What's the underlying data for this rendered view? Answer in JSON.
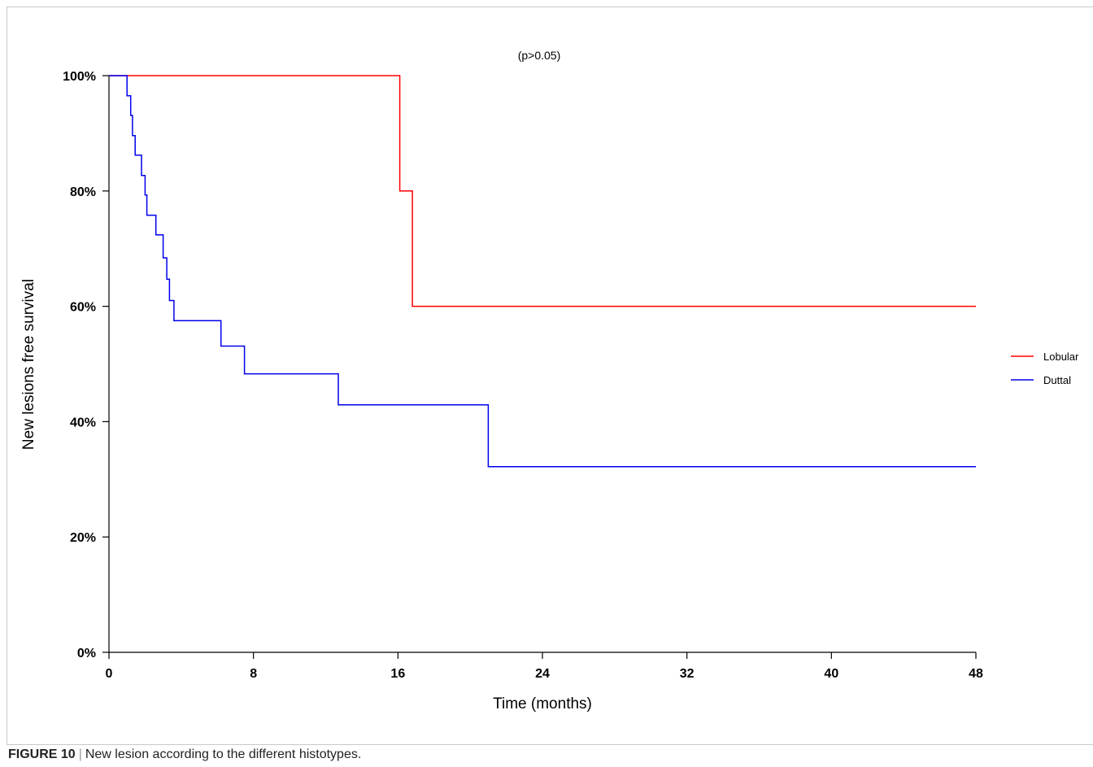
{
  "caption": {
    "label": "FIGURE 10",
    "separator": "|",
    "text": "New lesion according to the different histotypes."
  },
  "chart_data": {
    "type": "line",
    "subtype": "kaplan-meier-step",
    "annotation": "(p>0.05)",
    "xlabel": "Time (months)",
    "ylabel": "New lesions free survival",
    "xlim": [
      0,
      48
    ],
    "ylim": [
      0,
      100
    ],
    "x_ticks": [
      0,
      8,
      16,
      24,
      32,
      40,
      48
    ],
    "x_tick_labels": [
      "0",
      "8",
      "16",
      "24",
      "32",
      "40",
      "48"
    ],
    "y_ticks": [
      0,
      20,
      40,
      60,
      80,
      100
    ],
    "y_tick_labels": [
      "0%",
      "20%",
      "40%",
      "60%",
      "80%",
      "100%"
    ],
    "grid": false,
    "legend_position": "right",
    "series": [
      {
        "name": "Lobular",
        "color": "#ff0000",
        "points": [
          [
            0,
            100
          ],
          [
            16.1,
            100
          ],
          [
            16.1,
            80
          ],
          [
            16.8,
            80
          ],
          [
            16.8,
            60
          ],
          [
            48,
            60
          ]
        ]
      },
      {
        "name": "Duttal",
        "color": "#0000ee",
        "points": [
          [
            0,
            100
          ],
          [
            1.0,
            100
          ],
          [
            1.0,
            96.5
          ],
          [
            1.2,
            96.5
          ],
          [
            1.2,
            93.1
          ],
          [
            1.3,
            93.1
          ],
          [
            1.3,
            89.6
          ],
          [
            1.45,
            89.6
          ],
          [
            1.45,
            86.2
          ],
          [
            1.8,
            86.2
          ],
          [
            1.8,
            82.7
          ],
          [
            2.0,
            82.7
          ],
          [
            2.0,
            79.3
          ],
          [
            2.1,
            79.3
          ],
          [
            2.1,
            75.8
          ],
          [
            2.6,
            75.8
          ],
          [
            2.6,
            72.4
          ],
          [
            3.0,
            72.4
          ],
          [
            3.0,
            68.4
          ],
          [
            3.2,
            68.4
          ],
          [
            3.2,
            64.7
          ],
          [
            3.35,
            64.7
          ],
          [
            3.35,
            61.0
          ],
          [
            3.6,
            61.0
          ],
          [
            3.6,
            57.5
          ],
          [
            6.2,
            57.5
          ],
          [
            6.2,
            53.1
          ],
          [
            7.5,
            53.1
          ],
          [
            7.5,
            48.3
          ],
          [
            12.7,
            48.3
          ],
          [
            12.7,
            42.9
          ],
          [
            21.0,
            42.9
          ],
          [
            21.0,
            32.2
          ],
          [
            48,
            32.2
          ]
        ]
      }
    ]
  }
}
